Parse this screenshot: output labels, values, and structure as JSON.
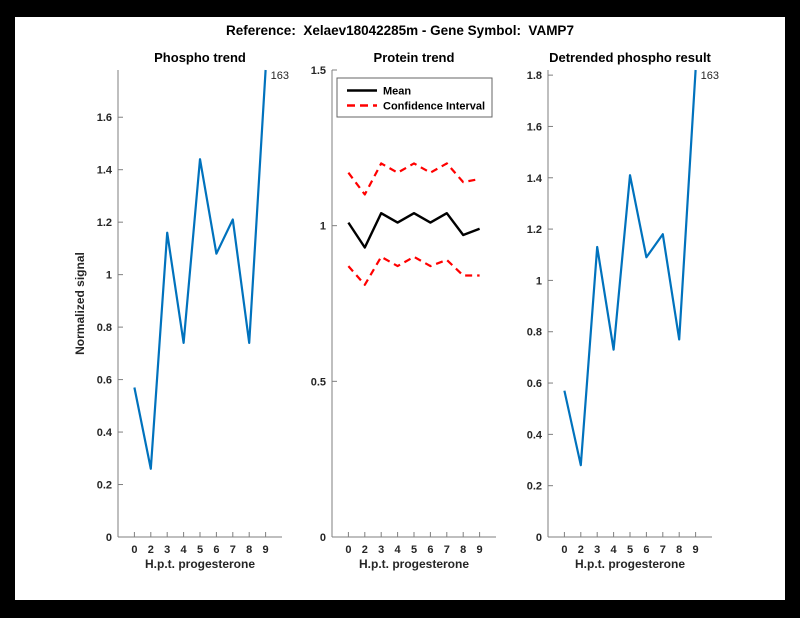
{
  "header": {
    "title": "Reference:  Xelaev18042285m - Gene Symbol:  VAMP7"
  },
  "colors": {
    "page_background": "#000000",
    "figure_background": "#ffffff",
    "axis_line": "#7f7f7f",
    "tick_text": "#262626",
    "title_text": "#000000",
    "phospho_blue": "#0072BD",
    "mean_black": "#000000",
    "ci_red": "#ff0000"
  },
  "chart_data": [
    {
      "id": "phospho-trend",
      "type": "line",
      "title": "Phospho trend",
      "xlabel": "H.p.t. progesterone",
      "ylabel": "Normalized signal",
      "x_tick_labels": [
        "0",
        "2",
        "3",
        "4",
        "5",
        "6",
        "7",
        "8",
        "9"
      ],
      "xlim": [
        0,
        10
      ],
      "ylim": [
        0,
        1.78
      ],
      "y_ticks": [
        0,
        0.2,
        0.4,
        0.6,
        0.8,
        1,
        1.2,
        1.4,
        1.6
      ],
      "grid": false,
      "series": [
        {
          "name": "phospho-signal",
          "color": "#0072BD",
          "style": "solid",
          "width": 2.2,
          "values": [
            0.57,
            0.26,
            1.16,
            0.74,
            1.44,
            1.08,
            1.21,
            0.74,
            1.78
          ]
        }
      ],
      "point_label": {
        "text": "163",
        "index": 8
      }
    },
    {
      "id": "protein-trend",
      "type": "line",
      "title": "Protein trend",
      "xlabel": "H.p.t. progesterone",
      "ylabel": "",
      "x_tick_labels": [
        "0",
        "2",
        "3",
        "4",
        "5",
        "6",
        "7",
        "8",
        "9"
      ],
      "xlim": [
        0,
        10
      ],
      "ylim": [
        0,
        1.5
      ],
      "y_ticks": [
        0,
        0.5,
        1,
        1.5
      ],
      "grid": false,
      "legend": {
        "position": "northwest",
        "entries": [
          {
            "label": "Mean",
            "color": "#000000",
            "style": "solid"
          },
          {
            "label": "Confidence Interval",
            "color": "#ff0000",
            "style": "dashed"
          }
        ]
      },
      "series": [
        {
          "name": "mean",
          "color": "#000000",
          "style": "solid",
          "width": 2.4,
          "values": [
            1.01,
            0.93,
            1.04,
            1.01,
            1.04,
            1.01,
            1.04,
            0.97,
            0.99
          ]
        },
        {
          "name": "ci-upper",
          "color": "#ff0000",
          "style": "dashed",
          "width": 2.2,
          "values": [
            1.17,
            1.1,
            1.2,
            1.17,
            1.2,
            1.17,
            1.2,
            1.14,
            1.15
          ]
        },
        {
          "name": "ci-lower",
          "color": "#ff0000",
          "style": "dashed",
          "width": 2.2,
          "values": [
            0.87,
            0.81,
            0.9,
            0.87,
            0.9,
            0.87,
            0.89,
            0.84,
            0.84
          ]
        }
      ]
    },
    {
      "id": "detrended-phospho",
      "type": "line",
      "title": "Detrended phospho result",
      "xlabel": "H.p.t. progesterone",
      "ylabel": "",
      "x_tick_labels": [
        "0",
        "2",
        "3",
        "4",
        "5",
        "6",
        "7",
        "8",
        "9"
      ],
      "xlim": [
        0,
        10
      ],
      "ylim": [
        0,
        1.82
      ],
      "y_ticks": [
        0,
        0.2,
        0.4,
        0.6,
        0.8,
        1,
        1.2,
        1.4,
        1.6,
        1.8
      ],
      "grid": false,
      "series": [
        {
          "name": "detrended-signal",
          "color": "#0072BD",
          "style": "solid",
          "width": 2.2,
          "values": [
            0.57,
            0.28,
            1.13,
            0.73,
            1.41,
            1.09,
            1.18,
            0.77,
            1.82
          ]
        }
      ],
      "point_label": {
        "text": "163",
        "index": 8
      }
    }
  ]
}
